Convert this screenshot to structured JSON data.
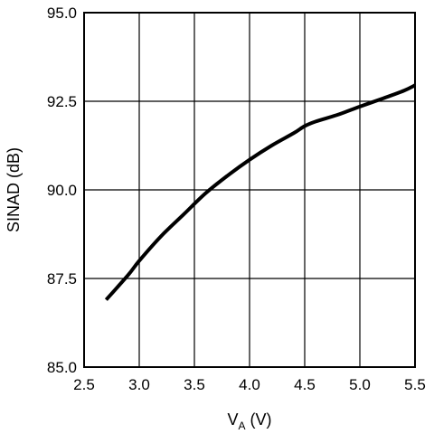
{
  "chart_data": {
    "type": "line",
    "xlabel": "V",
    "xlabel_subscript": "A",
    "xlabel_unit": " (V)",
    "ylabel": "SINAD (dB)",
    "xlim": [
      2.5,
      5.5
    ],
    "ylim": [
      85.0,
      95.0
    ],
    "x_ticks": [
      "2.5",
      "3.0",
      "3.5",
      "4.0",
      "4.5",
      "5.0",
      "5.5"
    ],
    "y_ticks": [
      "85.0",
      "87.5",
      "90.0",
      "92.5",
      "95.0"
    ],
    "grid": true,
    "series": [
      {
        "x": [
          2.7,
          2.9,
          3.0,
          3.2,
          3.4,
          3.6,
          3.8,
          4.0,
          4.2,
          4.4,
          4.5,
          4.6,
          4.8,
          5.0,
          5.2,
          5.4,
          5.5
        ],
        "y": [
          86.9,
          87.6,
          88.0,
          88.7,
          89.3,
          89.9,
          90.4,
          90.85,
          91.25,
          91.6,
          91.8,
          91.93,
          92.12,
          92.35,
          92.57,
          92.8,
          92.95
        ],
        "color": "#000000"
      }
    ]
  }
}
